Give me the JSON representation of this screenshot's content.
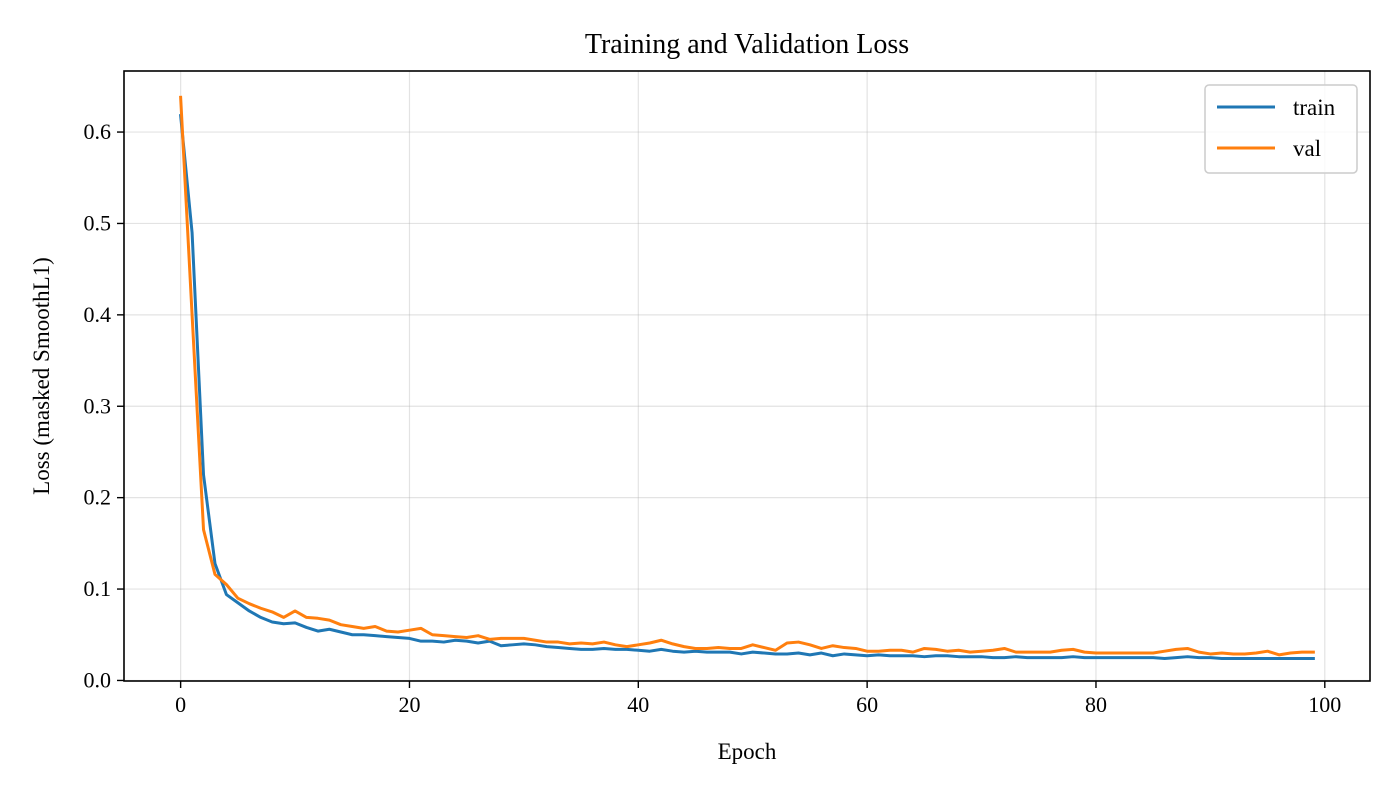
{
  "chart_data": {
    "type": "line",
    "title": "Training and Validation Loss",
    "xlabel": "Epoch",
    "ylabel": "Loss (masked SmoothL1)",
    "xlim": [
      -4.95,
      103.95
    ],
    "ylim": [
      -0.0006,
      0.6668
    ],
    "x_ticks": [
      0,
      20,
      40,
      60,
      80,
      100
    ],
    "y_ticks": [
      0.0,
      0.1,
      0.2,
      0.3,
      0.4,
      0.5,
      0.6
    ],
    "x_tick_labels": [
      "0",
      "20",
      "40",
      "60",
      "80",
      "100"
    ],
    "y_tick_labels": [
      "0.0",
      "0.1",
      "0.2",
      "0.3",
      "0.4",
      "0.5",
      "0.6"
    ],
    "grid": true,
    "legend_position": "top-right",
    "x": [
      0,
      1,
      2,
      3,
      4,
      5,
      6,
      7,
      8,
      9,
      10,
      11,
      12,
      13,
      14,
      15,
      16,
      17,
      18,
      19,
      20,
      21,
      22,
      23,
      24,
      25,
      26,
      27,
      28,
      29,
      30,
      31,
      32,
      33,
      34,
      35,
      36,
      37,
      38,
      39,
      40,
      41,
      42,
      43,
      44,
      45,
      46,
      47,
      48,
      49,
      50,
      51,
      52,
      53,
      54,
      55,
      56,
      57,
      58,
      59,
      60,
      61,
      62,
      63,
      64,
      65,
      66,
      67,
      68,
      69,
      70,
      71,
      72,
      73,
      74,
      75,
      76,
      77,
      78,
      79,
      80,
      81,
      82,
      83,
      84,
      85,
      86,
      87,
      88,
      89,
      90,
      91,
      92,
      93,
      94,
      95,
      96,
      97,
      98,
      99
    ],
    "series": [
      {
        "name": "train",
        "color": "#1f77b4",
        "values": [
          0.618,
          0.49,
          0.225,
          0.128,
          0.094,
          0.085,
          0.076,
          0.069,
          0.064,
          0.062,
          0.063,
          0.058,
          0.054,
          0.056,
          0.053,
          0.05,
          0.05,
          0.049,
          0.048,
          0.047,
          0.046,
          0.043,
          0.043,
          0.042,
          0.044,
          0.043,
          0.041,
          0.043,
          0.038,
          0.039,
          0.04,
          0.039,
          0.037,
          0.036,
          0.035,
          0.034,
          0.034,
          0.035,
          0.034,
          0.034,
          0.033,
          0.032,
          0.034,
          0.032,
          0.031,
          0.032,
          0.031,
          0.031,
          0.031,
          0.029,
          0.031,
          0.03,
          0.029,
          0.029,
          0.03,
          0.028,
          0.03,
          0.027,
          0.029,
          0.028,
          0.027,
          0.028,
          0.027,
          0.027,
          0.027,
          0.026,
          0.027,
          0.027,
          0.026,
          0.026,
          0.026,
          0.025,
          0.025,
          0.026,
          0.025,
          0.025,
          0.025,
          0.025,
          0.026,
          0.025,
          0.025,
          0.025,
          0.025,
          0.025,
          0.025,
          0.025,
          0.024,
          0.025,
          0.026,
          0.025,
          0.025,
          0.024,
          0.024,
          0.024,
          0.024,
          0.024,
          0.024,
          0.024,
          0.024,
          0.024
        ]
      },
      {
        "name": "val",
        "color": "#ff7f0e",
        "values": [
          0.638,
          0.4,
          0.165,
          0.116,
          0.105,
          0.09,
          0.084,
          0.079,
          0.075,
          0.069,
          0.076,
          0.069,
          0.068,
          0.066,
          0.061,
          0.059,
          0.057,
          0.059,
          0.054,
          0.053,
          0.055,
          0.057,
          0.05,
          0.049,
          0.048,
          0.047,
          0.049,
          0.045,
          0.046,
          0.046,
          0.046,
          0.044,
          0.042,
          0.042,
          0.04,
          0.041,
          0.04,
          0.042,
          0.039,
          0.037,
          0.039,
          0.041,
          0.044,
          0.04,
          0.037,
          0.035,
          0.035,
          0.036,
          0.035,
          0.035,
          0.039,
          0.036,
          0.033,
          0.041,
          0.042,
          0.039,
          0.035,
          0.038,
          0.036,
          0.035,
          0.032,
          0.032,
          0.033,
          0.033,
          0.031,
          0.035,
          0.034,
          0.032,
          0.033,
          0.031,
          0.032,
          0.033,
          0.035,
          0.031,
          0.031,
          0.031,
          0.031,
          0.033,
          0.034,
          0.031,
          0.03,
          0.03,
          0.03,
          0.03,
          0.03,
          0.03,
          0.032,
          0.034,
          0.035,
          0.031,
          0.029,
          0.03,
          0.029,
          0.029,
          0.03,
          0.032,
          0.028,
          0.03,
          0.031,
          0.031
        ]
      }
    ]
  }
}
